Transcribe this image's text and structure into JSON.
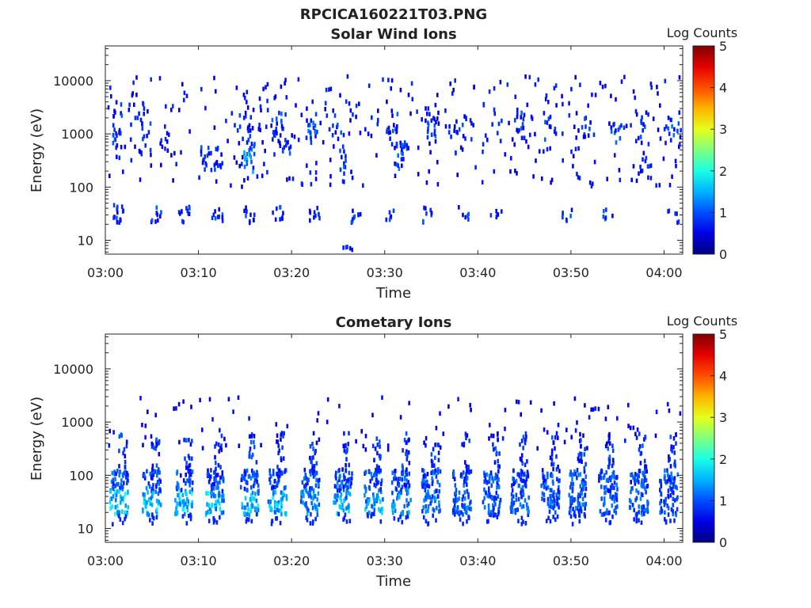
{
  "figure": {
    "title": "RPCICA160221T03.PNG"
  },
  "chart_data": [
    {
      "type": "heatmap",
      "title": "Solar Wind Ions",
      "xlabel": "Time",
      "ylabel": "Energy (eV)",
      "x_ticks": [
        "03:00",
        "03:10",
        "03:20",
        "03:30",
        "03:40",
        "03:50",
        "04:00"
      ],
      "x_range_minutes": [
        0,
        62
      ],
      "y_scale": "log",
      "y_ticks": [
        10,
        100,
        1000,
        10000
      ],
      "y_tick_labels": [
        "10",
        "100",
        "1000",
        "10000"
      ],
      "y_range": [
        5.5,
        45000
      ],
      "colorbar": {
        "label": "Log Counts",
        "range": [
          0,
          5
        ],
        "ticks": [
          "0",
          "1",
          "2",
          "3",
          "4",
          "5"
        ],
        "colormap": "jet"
      },
      "clusters": [
        {
          "t": 1.4,
          "e": 1300,
          "de": 0.5,
          "n": 20,
          "c": 0.9
        },
        {
          "t": 4.3,
          "e": 1200,
          "de": 0.5,
          "n": 16,
          "c": 0.9
        },
        {
          "t": 6.5,
          "e": 650,
          "de": 0.4,
          "n": 8,
          "c": 0.7
        },
        {
          "t": 10.8,
          "e": 320,
          "de": 0.25,
          "n": 14,
          "c": 0.9
        },
        {
          "t": 12.3,
          "e": 420,
          "de": 0.3,
          "n": 10,
          "c": 0.8
        },
        {
          "t": 15.5,
          "e": 350,
          "de": 0.3,
          "n": 22,
          "c": 1.2
        },
        {
          "t": 15.0,
          "e": 1300,
          "de": 0.3,
          "n": 8,
          "c": 0.8
        },
        {
          "t": 18.5,
          "e": 1300,
          "de": 0.35,
          "n": 18,
          "c": 1.0
        },
        {
          "t": 19.3,
          "e": 400,
          "de": 0.3,
          "n": 10,
          "c": 0.9
        },
        {
          "t": 22.2,
          "e": 1300,
          "de": 0.3,
          "n": 18,
          "c": 1.0
        },
        {
          "t": 25.0,
          "e": 1300,
          "de": 0.25,
          "n": 8,
          "c": 0.9
        },
        {
          "t": 25.5,
          "e": 300,
          "de": 0.25,
          "n": 8,
          "c": 0.9
        },
        {
          "t": 30.8,
          "e": 1200,
          "de": 0.3,
          "n": 10,
          "c": 0.9
        },
        {
          "t": 31.8,
          "e": 350,
          "de": 0.3,
          "n": 22,
          "c": 1.0
        },
        {
          "t": 35.0,
          "e": 1200,
          "de": 0.3,
          "n": 14,
          "c": 1.0
        },
        {
          "t": 37.5,
          "e": 800,
          "de": 0.35,
          "n": 10,
          "c": 0.8
        },
        {
          "t": 38.9,
          "e": 1300,
          "de": 0.25,
          "n": 8,
          "c": 0.9
        },
        {
          "t": 44.5,
          "e": 1300,
          "de": 0.3,
          "n": 8,
          "c": 0.9
        },
        {
          "t": 47.8,
          "e": 1300,
          "de": 0.3,
          "n": 10,
          "c": 0.9
        },
        {
          "t": 51.5,
          "e": 1300,
          "de": 0.25,
          "n": 8,
          "c": 0.9
        },
        {
          "t": 54.8,
          "e": 1300,
          "de": 0.3,
          "n": 10,
          "c": 1.0
        },
        {
          "t": 57.5,
          "e": 1300,
          "de": 0.25,
          "n": 8,
          "c": 0.9
        },
        {
          "t": 61.0,
          "e": 1300,
          "de": 0.25,
          "n": 10,
          "c": 1.0
        },
        {
          "t": 58.0,
          "e": 300,
          "de": 0.25,
          "n": 8,
          "c": 0.8
        },
        {
          "t": 1.5,
          "e": 30,
          "de": 0.2,
          "n": 14,
          "c": 0.9
        },
        {
          "t": 5.5,
          "e": 30,
          "de": 0.15,
          "n": 10,
          "c": 0.9
        },
        {
          "t": 8.5,
          "e": 30,
          "de": 0.15,
          "n": 12,
          "c": 0.9
        },
        {
          "t": 12.0,
          "e": 30,
          "de": 0.15,
          "n": 10,
          "c": 0.9
        },
        {
          "t": 15.5,
          "e": 30,
          "de": 0.15,
          "n": 10,
          "c": 0.9
        },
        {
          "t": 18.5,
          "e": 30,
          "de": 0.15,
          "n": 10,
          "c": 0.9
        },
        {
          "t": 22.5,
          "e": 30,
          "de": 0.15,
          "n": 10,
          "c": 0.9
        },
        {
          "t": 27.0,
          "e": 30,
          "de": 0.15,
          "n": 10,
          "c": 0.9
        },
        {
          "t": 30.5,
          "e": 30,
          "de": 0.15,
          "n": 6,
          "c": 0.9
        },
        {
          "t": 34.5,
          "e": 30,
          "de": 0.15,
          "n": 8,
          "c": 0.9
        },
        {
          "t": 38.5,
          "e": 30,
          "de": 0.15,
          "n": 6,
          "c": 0.9
        },
        {
          "t": 42.0,
          "e": 30,
          "de": 0.15,
          "n": 6,
          "c": 0.9
        },
        {
          "t": 49.5,
          "e": 30,
          "de": 0.15,
          "n": 6,
          "c": 0.9
        },
        {
          "t": 54.0,
          "e": 30,
          "de": 0.15,
          "n": 6,
          "c": 0.9
        },
        {
          "t": 61.0,
          "e": 30,
          "de": 0.15,
          "n": 6,
          "c": 0.9
        },
        {
          "t": 26.0,
          "e": 7,
          "de": 0.05,
          "n": 5,
          "c": 0.9
        }
      ],
      "noise": {
        "count": 400,
        "e_min": 100,
        "e_max": 12000,
        "c": 0.8
      }
    },
    {
      "type": "heatmap",
      "title": "Cometary Ions",
      "xlabel": "Time",
      "ylabel": "Energy (eV)",
      "x_ticks": [
        "03:00",
        "03:10",
        "03:20",
        "03:30",
        "03:40",
        "03:50",
        "04:00"
      ],
      "x_range_minutes": [
        0,
        62
      ],
      "y_scale": "log",
      "y_ticks": [
        10,
        100,
        1000,
        10000
      ],
      "y_tick_labels": [
        "10",
        "100",
        "1000",
        "10000"
      ],
      "y_range": [
        5.5,
        45000
      ],
      "colorbar": {
        "label": "Log Counts",
        "range": [
          0,
          5
        ],
        "ticks": [
          "0",
          "1",
          "2",
          "3",
          "4",
          "5"
        ],
        "colormap": "jet"
      },
      "bursts": [
        {
          "t": 1.5,
          "bright": 1.9
        },
        {
          "t": 5.0,
          "bright": 1.8
        },
        {
          "t": 8.5,
          "bright": 1.9
        },
        {
          "t": 11.8,
          "bright": 1.7
        },
        {
          "t": 15.5,
          "bright": 1.7
        },
        {
          "t": 18.5,
          "bright": 1.7
        },
        {
          "t": 22.0,
          "bright": 1.5
        },
        {
          "t": 25.5,
          "bright": 1.6
        },
        {
          "t": 28.8,
          "bright": 1.6
        },
        {
          "t": 31.8,
          "bright": 1.5
        },
        {
          "t": 35.0,
          "bright": 1.3
        },
        {
          "t": 38.3,
          "bright": 1.3
        },
        {
          "t": 41.5,
          "bright": 1.2
        },
        {
          "t": 44.5,
          "bright": 1.2
        },
        {
          "t": 47.8,
          "bright": 1.2
        },
        {
          "t": 50.8,
          "bright": 1.2
        },
        {
          "t": 54.0,
          "bright": 1.2
        },
        {
          "t": 57.3,
          "bright": 1.2
        },
        {
          "t": 60.5,
          "bright": 1.1
        }
      ],
      "noise": {
        "count": 120,
        "e_min": 300,
        "e_max": 3000,
        "c": 0.7
      }
    }
  ]
}
